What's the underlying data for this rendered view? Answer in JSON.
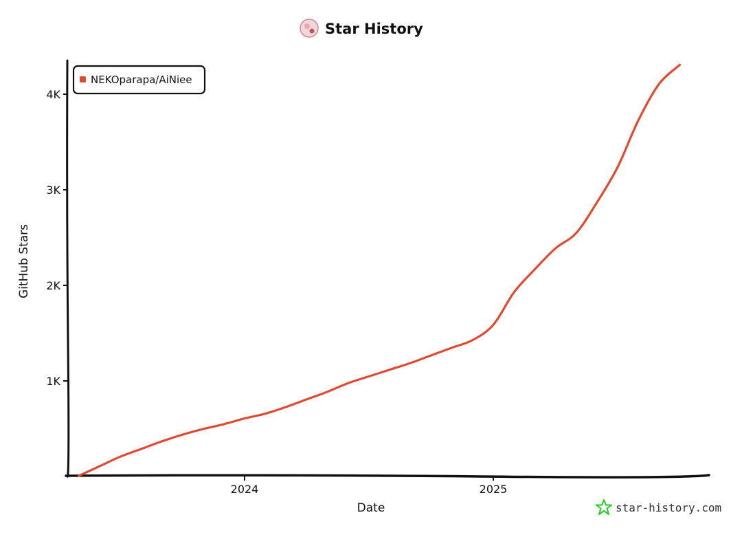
{
  "chart_data": {
    "type": "line",
    "title": "Star History",
    "xlabel": "Date",
    "ylabel": "GitHub Stars",
    "x_ticks": [
      "2024",
      "2025"
    ],
    "y_ticks": [
      "1K",
      "2K",
      "3K",
      "4K"
    ],
    "ylim": [
      0,
      4300
    ],
    "grid": false,
    "legend_position": "top-left",
    "series": [
      {
        "name": "NEKOparapa/AiNiee",
        "color": "#dd4b32",
        "x": [
          "2023-05",
          "2023-06",
          "2023-07",
          "2023-08",
          "2023-09",
          "2023-10",
          "2023-11",
          "2023-12",
          "2024-01",
          "2024-02",
          "2024-03",
          "2024-04",
          "2024-05",
          "2024-06",
          "2024-07",
          "2024-08",
          "2024-09",
          "2024-10",
          "2024-11",
          "2024-12",
          "2025-01",
          "2025-02",
          "2025-03",
          "2025-04",
          "2025-05",
          "2025-06",
          "2025-07",
          "2025-08",
          "2025-09",
          "2025-10"
        ],
        "y": [
          0,
          100,
          200,
          280,
          360,
          430,
          490,
          540,
          600,
          650,
          720,
          800,
          880,
          970,
          1040,
          1110,
          1180,
          1260,
          1340,
          1420,
          1580,
          1920,
          2160,
          2380,
          2540,
          2860,
          3230,
          3720,
          4100,
          4300
        ]
      }
    ]
  },
  "branding": {
    "site": "star-history.com",
    "logo_icon": "star-icon",
    "logo_color": "#22cc22",
    "avatar_icon": "avatar-icon"
  }
}
